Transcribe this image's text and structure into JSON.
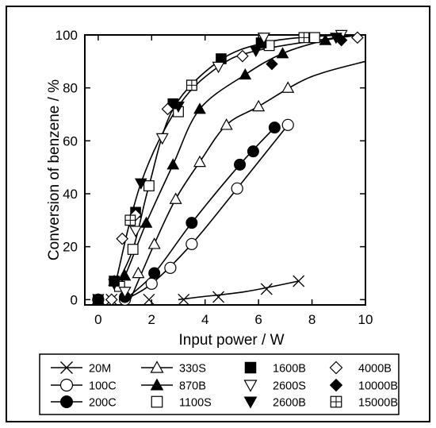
{
  "chart_data": {
    "type": "scatter",
    "title": "",
    "xlabel": "Input power / W",
    "ylabel": "Conversion of benzene / %",
    "xlim": [
      -0.5,
      10
    ],
    "ylim": [
      -2,
      100
    ],
    "xticks": [
      0,
      2,
      4,
      6,
      8,
      10
    ],
    "yticks": [
      0,
      20,
      40,
      60,
      80,
      100
    ],
    "grid": false,
    "legend_placement": "bottom",
    "series": [
      {
        "name": "20M",
        "marker": "x",
        "values": [
          [
            0,
            0
          ],
          [
            0.5,
            0
          ],
          [
            1.9,
            0
          ],
          [
            3.2,
            0
          ],
          [
            4.5,
            1
          ],
          [
            6.3,
            4
          ],
          [
            7.5,
            7
          ]
        ]
      },
      {
        "name": "100C",
        "marker": "circle-open",
        "values": [
          [
            0,
            0
          ],
          [
            1.0,
            0
          ],
          [
            2.0,
            6
          ],
          [
            2.7,
            12
          ],
          [
            3.5,
            21
          ],
          [
            5.2,
            42
          ],
          [
            7.1,
            66
          ]
        ]
      },
      {
        "name": "200C",
        "marker": "circle-filled",
        "values": [
          [
            0,
            0
          ],
          [
            1.0,
            1
          ],
          [
            2.1,
            10
          ],
          [
            3.5,
            29
          ],
          [
            5.3,
            51
          ],
          [
            5.8,
            56
          ],
          [
            6.6,
            65
          ]
        ]
      },
      {
        "name": "330S",
        "marker": "triangle-open",
        "values": [
          [
            0,
            0
          ],
          [
            1.5,
            10
          ],
          [
            2.1,
            21
          ],
          [
            2.9,
            38
          ],
          [
            3.8,
            52
          ],
          [
            4.8,
            66
          ],
          [
            6.0,
            73
          ],
          [
            7.1,
            80
          ]
        ]
      },
      {
        "name": "870B",
        "marker": "triangle-filled",
        "values": [
          [
            0.6,
            7
          ],
          [
            1.0,
            9
          ],
          [
            1.8,
            29
          ],
          [
            2.8,
            51
          ],
          [
            3.8,
            72
          ],
          [
            5.5,
            85
          ],
          [
            6.9,
            93
          ],
          [
            8.5,
            98
          ]
        ]
      },
      {
        "name": "1100S",
        "marker": "square-open",
        "values": [
          [
            0.8,
            5
          ],
          [
            1.3,
            19
          ],
          [
            1.9,
            43
          ],
          [
            3.0,
            71
          ],
          [
            3.5,
            81
          ],
          [
            6.4,
            96
          ],
          [
            8.1,
            99
          ]
        ]
      },
      {
        "name": "1600B",
        "marker": "square-filled",
        "values": [
          [
            0,
            0
          ],
          [
            0.6,
            7
          ],
          [
            1.4,
            33
          ],
          [
            2.8,
            74
          ],
          [
            4.6,
            91
          ],
          [
            6.1,
            97
          ]
        ]
      },
      {
        "name": "2600S",
        "marker": "triangle-down-open",
        "values": [
          [
            1.0,
            3
          ],
          [
            1.4,
            26
          ],
          [
            2.4,
            61
          ],
          [
            4.5,
            88
          ],
          [
            6.2,
            99
          ],
          [
            9.1,
            100
          ]
        ]
      },
      {
        "name": "2600B",
        "marker": "triangle-down-filled",
        "values": [
          [
            0.6,
            6
          ],
          [
            1.6,
            44
          ],
          [
            3.0,
            73
          ],
          [
            5.9,
            94
          ],
          [
            8.9,
            99
          ]
        ]
      },
      {
        "name": "4000B",
        "marker": "diamond-open",
        "values": [
          [
            0.5,
            0
          ],
          [
            0.9,
            23
          ],
          [
            1.4,
            32
          ],
          [
            2.6,
            72
          ],
          [
            5.4,
            92
          ],
          [
            9.7,
            99
          ]
        ]
      },
      {
        "name": "10000B",
        "marker": "diamond-filled",
        "values": [
          [
            6.5,
            89
          ],
          [
            9.1,
            98
          ]
        ]
      },
      {
        "name": "15000B",
        "marker": "square-plus",
        "values": [
          [
            1.2,
            30
          ],
          [
            3.5,
            81
          ],
          [
            7.7,
            99
          ]
        ]
      }
    ],
    "curves": [
      [
        [
          7.5,
          7
        ],
        [
          5.5,
          3
        ],
        [
          3.8,
          1
        ],
        [
          3.0,
          0
        ]
      ],
      [
        [
          1.0,
          0
        ],
        [
          2.0,
          6
        ],
        [
          3.5,
          21
        ],
        [
          5.2,
          42
        ],
        [
          7.1,
          66
        ]
      ],
      [
        [
          1.0,
          0
        ],
        [
          2.1,
          10
        ],
        [
          3.5,
          29
        ],
        [
          5.3,
          51
        ],
        [
          6.6,
          65
        ]
      ],
      [
        [
          1.2,
          0
        ],
        [
          2.1,
          21
        ],
        [
          2.9,
          38
        ],
        [
          3.8,
          52
        ],
        [
          4.8,
          66
        ],
        [
          6.0,
          73
        ],
        [
          7.5,
          82
        ],
        [
          8.5,
          86
        ],
        [
          10,
          90
        ]
      ],
      [
        [
          0.6,
          4
        ],
        [
          1.0,
          9
        ],
        [
          1.8,
          29
        ],
        [
          2.8,
          51
        ],
        [
          3.8,
          72
        ],
        [
          5.5,
          85
        ],
        [
          6.9,
          93
        ],
        [
          8.5,
          98
        ],
        [
          9.8,
          100
        ]
      ],
      [
        [
          0.6,
          4
        ],
        [
          1.3,
          19
        ],
        [
          1.9,
          43
        ],
        [
          2.8,
          72
        ],
        [
          4.5,
          90
        ],
        [
          6.2,
          97
        ],
        [
          8.2,
          99.5
        ],
        [
          9.8,
          100
        ]
      ],
      [
        [
          0.6,
          4
        ],
        [
          1.6,
          44
        ],
        [
          3.0,
          73
        ],
        [
          4.5,
          88
        ],
        [
          5.9,
          94
        ],
        [
          8.9,
          99
        ],
        [
          10,
          100
        ]
      ]
    ]
  }
}
